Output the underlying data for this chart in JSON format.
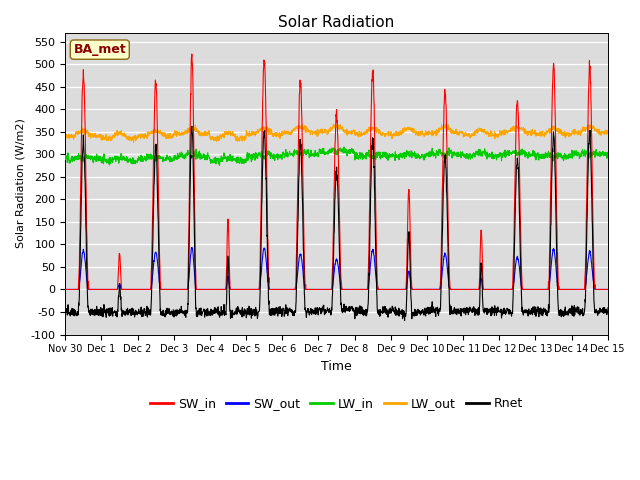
{
  "title": "Solar Radiation",
  "ylabel": "Solar Radiation (W/m2)",
  "xlabel": "Time",
  "ylim": [
    -100,
    570
  ],
  "yticks": [
    -100,
    -50,
    0,
    50,
    100,
    150,
    200,
    250,
    300,
    350,
    400,
    450,
    500,
    550
  ],
  "colors": {
    "SW_in": "#ff0000",
    "SW_out": "#0000ff",
    "LW_in": "#00cc00",
    "LW_out": "#ffa500",
    "Rnet": "#000000"
  },
  "bg_color": "#dcdcdc",
  "legend_label": "BA_met",
  "legend_label_color": "#8b0000",
  "legend_label_bg": "#ffffcc",
  "xtick_labels": [
    "Nov 30",
    "Dec 1",
    "Dec 2",
    "Dec 3",
    "Dec 4",
    "Dec 5",
    "Dec 6",
    "Dec 7",
    "Dec 8",
    "Dec 9",
    "Dec 10",
    "Dec 11",
    "Dec 12",
    "Dec 13",
    "Dec 14",
    "Dec 15"
  ],
  "linewidth": 0.8,
  "pts_per_day": 144
}
